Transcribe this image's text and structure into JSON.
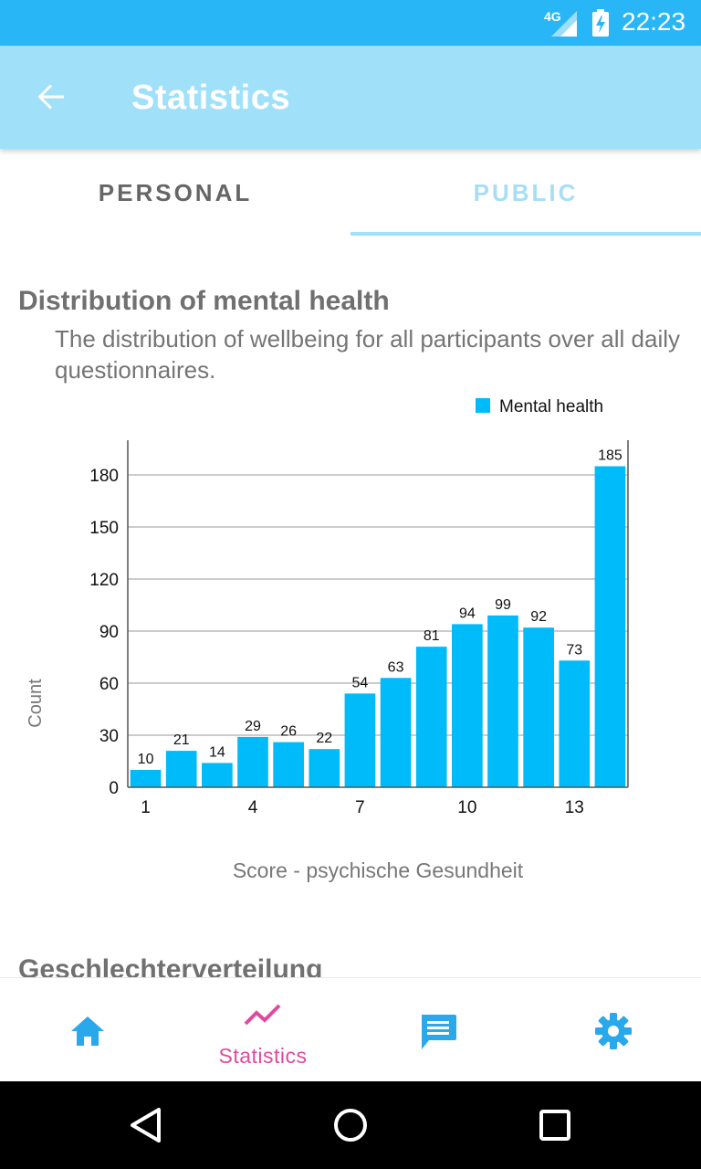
{
  "status_bar": {
    "network": "4G",
    "time": "22:23"
  },
  "app_bar": {
    "title": "Statistics",
    "back_icon": "arrow-back-icon"
  },
  "tabs": [
    {
      "label": "PERSONAL",
      "selected": false
    },
    {
      "label": "PUBLIC",
      "selected": true
    }
  ],
  "section": {
    "title": "Distribution of mental health",
    "description": "The distribution of wellbeing for all participants over all daily questionnaires."
  },
  "next_section_title": "Geschlechterverteilung",
  "colors": {
    "status_bar": "#29b6f6",
    "app_bar": "#a0e1f9",
    "bar": "#00bbf9",
    "accent_pink": "#e04a9e",
    "nav_blue": "#29a8ec"
  },
  "chart_data": {
    "type": "bar",
    "series": [
      {
        "name": "Mental health",
        "values": [
          10,
          21,
          14,
          29,
          26,
          22,
          54,
          63,
          81,
          94,
          99,
          92,
          73,
          185
        ]
      }
    ],
    "categories": [
      1,
      2,
      3,
      4,
      5,
      6,
      7,
      8,
      9,
      10,
      11,
      12,
      13,
      14
    ],
    "x_tick_labels": [
      "1",
      "4",
      "7",
      "10",
      "13"
    ],
    "y_ticks": [
      0,
      30,
      60,
      90,
      120,
      150,
      180
    ],
    "ylim": [
      0,
      200
    ],
    "xlabel": "Score - psychische Gesundheit",
    "ylabel": "Count",
    "legend": "top-right",
    "grid": true
  },
  "bottom_nav": {
    "items": [
      {
        "name": "home",
        "icon": "home-icon",
        "label": ""
      },
      {
        "name": "statistics",
        "icon": "trending-up-icon",
        "label": "Statistics",
        "active": true
      },
      {
        "name": "messages",
        "icon": "message-icon",
        "label": ""
      },
      {
        "name": "settings",
        "icon": "gear-icon",
        "label": ""
      }
    ]
  }
}
